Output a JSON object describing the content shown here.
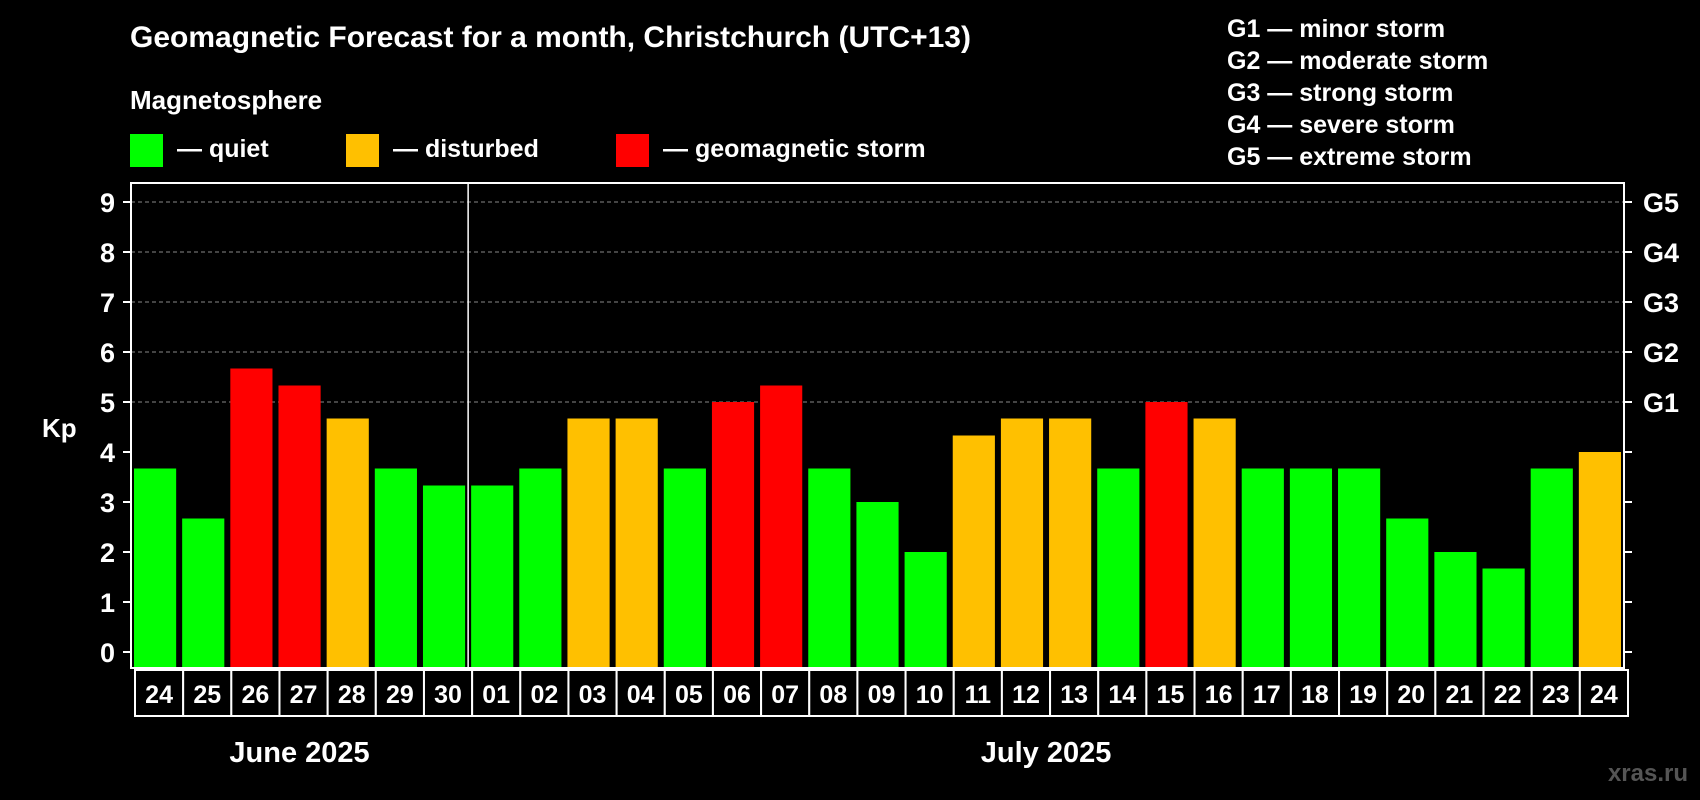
{
  "chart_data": {
    "type": "bar",
    "title": "Geomagnetic Forecast for a month, Christchurch (UTC+13)",
    "legend_title": "Magnetosphere",
    "legend": [
      {
        "label": "— quiet",
        "color": "#00ff00"
      },
      {
        "label": "— disturbed",
        "color": "#ffc000"
      },
      {
        "label": "— geomagnetic storm",
        "color": "#ff0000"
      }
    ],
    "storm_scale": [
      "G1 — minor storm",
      "G2 — moderate storm",
      "G3 — strong storm",
      "G4 — severe storm",
      "G5 — extreme storm"
    ],
    "ylabel": "Kp",
    "ylim": [
      0,
      9
    ],
    "yticks": [
      "0",
      "1",
      "2",
      "3",
      "4",
      "5",
      "6",
      "7",
      "8",
      "9"
    ],
    "right_ticks": [
      {
        "kp": 5,
        "label": "G1"
      },
      {
        "kp": 6,
        "label": "G2"
      },
      {
        "kp": 7,
        "label": "G3"
      },
      {
        "kp": 8,
        "label": "G4"
      },
      {
        "kp": 9,
        "label": "G5"
      }
    ],
    "grid": "dashed horizontal from Kp 5 to 9",
    "categories": [
      "24",
      "25",
      "26",
      "27",
      "28",
      "29",
      "30",
      "01",
      "02",
      "03",
      "04",
      "05",
      "06",
      "07",
      "08",
      "09",
      "10",
      "11",
      "12",
      "13",
      "14",
      "15",
      "16",
      "17",
      "18",
      "19",
      "20",
      "21",
      "22",
      "23",
      "24"
    ],
    "values": [
      3.67,
      2.67,
      5.67,
      5.33,
      4.67,
      3.67,
      3.33,
      3.33,
      3.67,
      4.67,
      4.67,
      3.67,
      5.0,
      5.33,
      3.67,
      3.0,
      2.0,
      4.33,
      4.67,
      4.67,
      3.67,
      5.0,
      4.67,
      3.67,
      3.67,
      3.67,
      2.67,
      2.0,
      1.67,
      3.67,
      4.0
    ],
    "levels": [
      "quiet",
      "quiet",
      "storm",
      "storm",
      "disturbed",
      "quiet",
      "quiet",
      "quiet",
      "quiet",
      "disturbed",
      "disturbed",
      "quiet",
      "storm",
      "storm",
      "quiet",
      "quiet",
      "quiet",
      "disturbed",
      "disturbed",
      "disturbed",
      "quiet",
      "storm",
      "disturbed",
      "quiet",
      "quiet",
      "quiet",
      "quiet",
      "quiet",
      "quiet",
      "quiet",
      "disturbed"
    ],
    "level_colors": {
      "quiet": "#00ff00",
      "disturbed": "#ffc000",
      "storm": "#ff0000"
    },
    "months": [
      {
        "label": "June 2025",
        "start": 0,
        "end": 6
      },
      {
        "label": "July 2025",
        "start": 7,
        "end": 30
      }
    ]
  },
  "watermark": "xras.ru"
}
